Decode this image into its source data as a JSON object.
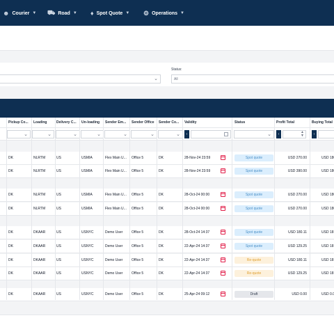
{
  "nav": {
    "items": [
      {
        "label": "Courier",
        "icon": "user-icon"
      },
      {
        "label": "Road",
        "icon": "truck-icon"
      },
      {
        "label": "Spot Quote",
        "icon": "tag-icon"
      },
      {
        "label": "Operations",
        "icon": "gear-icon"
      }
    ]
  },
  "filters": {
    "status_label": "Status:",
    "status_value": "All"
  },
  "table": {
    "columns": [
      "Pickup Co...",
      "Loading",
      "Delivery C...",
      "Un-loading",
      "Sender Em...",
      "Sender Office",
      "Sender Co...",
      "Validity",
      "Status",
      "Profit Total",
      "Buying Total"
    ],
    "rows": [
      {
        "pickup": "DK",
        "loading": "NLRTM",
        "delivery": "US",
        "unloading": "USMIA",
        "sender": "Flex Main U...",
        "office": "Office 5",
        "sco": "DK",
        "validity": "28-Nov-24 23:59",
        "status": "Spot quote",
        "profit": "USD 270.00",
        "buying": "USD 180"
      },
      {
        "pickup": "DK",
        "loading": "NLRTM",
        "delivery": "US",
        "unloading": "USMIA",
        "sender": "Flex Main U...",
        "office": "Office 5",
        "sco": "DK",
        "validity": "28-Nov-24 23:59",
        "status": "Spot quote",
        "profit": "USD 390.00",
        "buying": "USD 180"
      },
      {
        "pickup": "DK",
        "loading": "NLRTM",
        "delivery": "US",
        "unloading": "USMIA",
        "sender": "Flex Main U...",
        "office": "Office 5",
        "sco": "DK",
        "validity": "28-Oct-24 00:00",
        "status": "Spot quote",
        "profit": "USD 270.00",
        "buying": "USD 180"
      },
      {
        "pickup": "DK",
        "loading": "NLRTM",
        "delivery": "US",
        "unloading": "USMIA",
        "sender": "Flex Main U...",
        "office": "Office 5",
        "sco": "DK",
        "validity": "28-Oct-24 00:00",
        "status": "Spot quote",
        "profit": "USD 270.00",
        "buying": "USD 180"
      },
      {
        "pickup": "DK",
        "loading": "DKAAR",
        "delivery": "US",
        "unloading": "USNYC",
        "sender": "Demo User",
        "office": "Office 5",
        "sco": "DK",
        "validity": "28-Oct-24 14:37",
        "status": "Spot quote",
        "profit": "USD 180.11",
        "buying": "USD 18"
      },
      {
        "pickup": "DK",
        "loading": "DKAAR",
        "delivery": "US",
        "unloading": "USNYC",
        "sender": "Demo User",
        "office": "Office 5",
        "sco": "DK",
        "validity": "22-Apr-24 14:37",
        "status": "Spot quote",
        "profit": "USD 129.25",
        "buying": "USD 18"
      },
      {
        "pickup": "DK",
        "loading": "DKAAR",
        "delivery": "US",
        "unloading": "USNYC",
        "sender": "Demo User",
        "office": "Office 5",
        "sco": "DK",
        "validity": "22-Apr-24 14:37",
        "status": "Re-quote",
        "profit": "USD 180.11",
        "buying": "USD 18"
      },
      {
        "pickup": "DK",
        "loading": "DKAAR",
        "delivery": "US",
        "unloading": "USNYC",
        "sender": "Demo User",
        "office": "Office 5",
        "sco": "DK",
        "validity": "22-Apr-24 14:37",
        "status": "Re-quote",
        "profit": "USD 129.25",
        "buying": "USD 18"
      },
      {
        "pickup": "DK",
        "loading": "DKAAR",
        "delivery": "US",
        "unloading": "USNYC",
        "sender": "Demo User",
        "office": "Office 5",
        "sco": "DK",
        "validity": "25-Apr-24 09:12",
        "status": "Draft",
        "profit": "USD 0.00",
        "buying": "USD 0.00"
      }
    ]
  },
  "colors": {
    "nav_bg": "#0e2f52",
    "spot_quote_bg": "#dbeefd",
    "spot_quote_fg": "#4a90c8",
    "re_quote_bg": "#fdf1dc",
    "re_quote_fg": "#e0a030",
    "draft_bg": "#e5e7eb",
    "draft_fg": "#374151"
  }
}
